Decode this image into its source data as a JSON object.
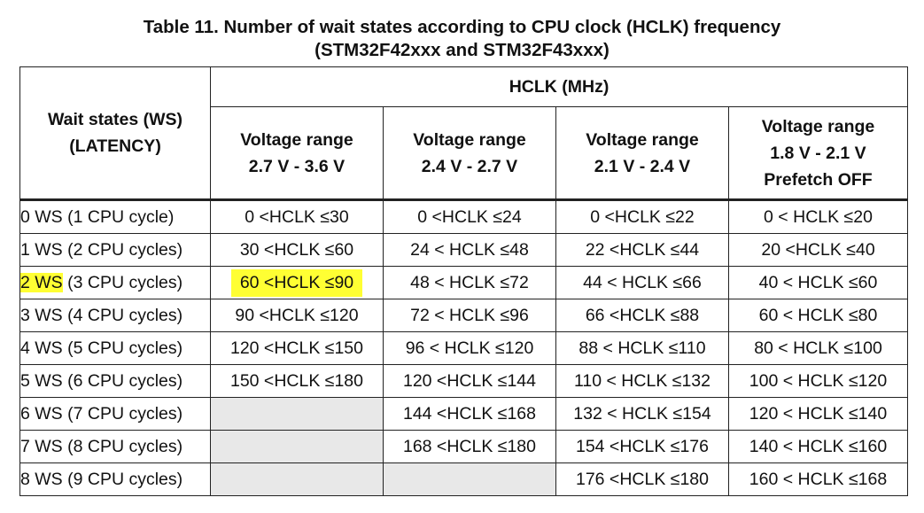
{
  "title": {
    "line1": "Table 11. Number of wait states according to CPU clock (HCLK) frequency",
    "line2": "(STM32F42xxx and STM32F43xxx)"
  },
  "header": {
    "ws_line1": "Wait states (WS)",
    "ws_line2": "(LATENCY)",
    "hclk": "HCLK (MHz)",
    "cols": [
      {
        "line1": "Voltage range",
        "line2": "2.7 V - 3.6 V",
        "line3": ""
      },
      {
        "line1": "Voltage range",
        "line2": "2.4 V - 2.7 V",
        "line3": ""
      },
      {
        "line1": "Voltage range",
        "line2": "2.1 V - 2.4 V",
        "line3": ""
      },
      {
        "line1": "Voltage range",
        "line2": "1.8 V - 2.1 V",
        "line3": "Prefetch OFF"
      }
    ]
  },
  "rows": [
    {
      "ws_a": "0 WS",
      "ws_b": " (1 CPU cycle)",
      "c1": "0 <HCLK ≤30",
      "c2": "0 <HCLK ≤24",
      "c3": "0 <HCLK ≤22",
      "c4": "0 < HCLK ≤20"
    },
    {
      "ws_a": "1 WS",
      "ws_b": " (2 CPU cycles)",
      "c1": "30 <HCLK ≤60",
      "c2": "24 < HCLK ≤48",
      "c3": "22 <HCLK ≤44",
      "c4": "20 <HCLK ≤40"
    },
    {
      "ws_a": "2 WS",
      "ws_b": " (3 CPU cycles)",
      "c1": "60 <HCLK ≤90",
      "c2": "48 < HCLK ≤72",
      "c3": "44 < HCLK ≤66",
      "c4": "40 < HCLK ≤60"
    },
    {
      "ws_a": "3 WS",
      "ws_b": " (4 CPU cycles)",
      "c1": "90 <HCLK ≤120",
      "c2": "72 < HCLK ≤96",
      "c3": "66 <HCLK ≤88",
      "c4": "60 < HCLK ≤80"
    },
    {
      "ws_a": "4 WS",
      "ws_b": " (5 CPU cycles)",
      "c1": "120 <HCLK ≤150",
      "c2": "96 < HCLK ≤120",
      "c3": "88 < HCLK ≤110",
      "c4": "80 < HCLK ≤100"
    },
    {
      "ws_a": "5 WS",
      "ws_b": " (6 CPU cycles)",
      "c1": "150 <HCLK ≤180",
      "c2": "120 <HCLK ≤144",
      "c3": "110 < HCLK ≤132",
      "c4": "100 < HCLK ≤120"
    },
    {
      "ws_a": "6 WS",
      "ws_b": " (7 CPU cycles)",
      "c1": "",
      "c2": "144 <HCLK ≤168",
      "c3": "132 < HCLK ≤154",
      "c4": "120 < HCLK ≤140"
    },
    {
      "ws_a": "7 WS",
      "ws_b": " (8 CPU cycles)",
      "c1": "",
      "c2": "168 <HCLK ≤180",
      "c3": "154 <HCLK ≤176",
      "c4": "140 < HCLK ≤160"
    },
    {
      "ws_a": "8 WS",
      "ws_b": " (9 CPU cycles)",
      "c1": "",
      "c2": "",
      "c3": "176 <HCLK ≤180",
      "c4": "160 < HCLK ≤168"
    }
  ],
  "highlight_color": "#ffff33",
  "empty_cell_color": "#e8e8e8"
}
